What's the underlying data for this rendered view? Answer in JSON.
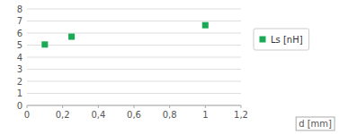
{
  "chart_data": {
    "type": "scatter",
    "x_label": "d [mm]",
    "x": [
      0.1,
      0.25,
      1.0
    ],
    "series": [
      {
        "name": "Ls [nH]",
        "color": "#1aaa55",
        "marker": "square",
        "values": [
          5.05,
          5.7,
          6.65
        ]
      }
    ],
    "xlim": [
      0,
      1.2
    ],
    "ylim": [
      0,
      8
    ],
    "xticks": [
      0,
      {
        "value": 0.2,
        "label": "0,2"
      },
      {
        "value": 0.4,
        "label": "0,4"
      },
      {
        "value": 0.6,
        "label": "0,6"
      },
      {
        "value": 0.8,
        "label": "0,8"
      },
      1,
      {
        "value": 1.2,
        "label": "1,2"
      }
    ],
    "yticks": [
      0,
      1,
      2,
      3,
      4,
      5,
      6,
      7,
      8
    ],
    "grid": "y",
    "legend": "right"
  }
}
